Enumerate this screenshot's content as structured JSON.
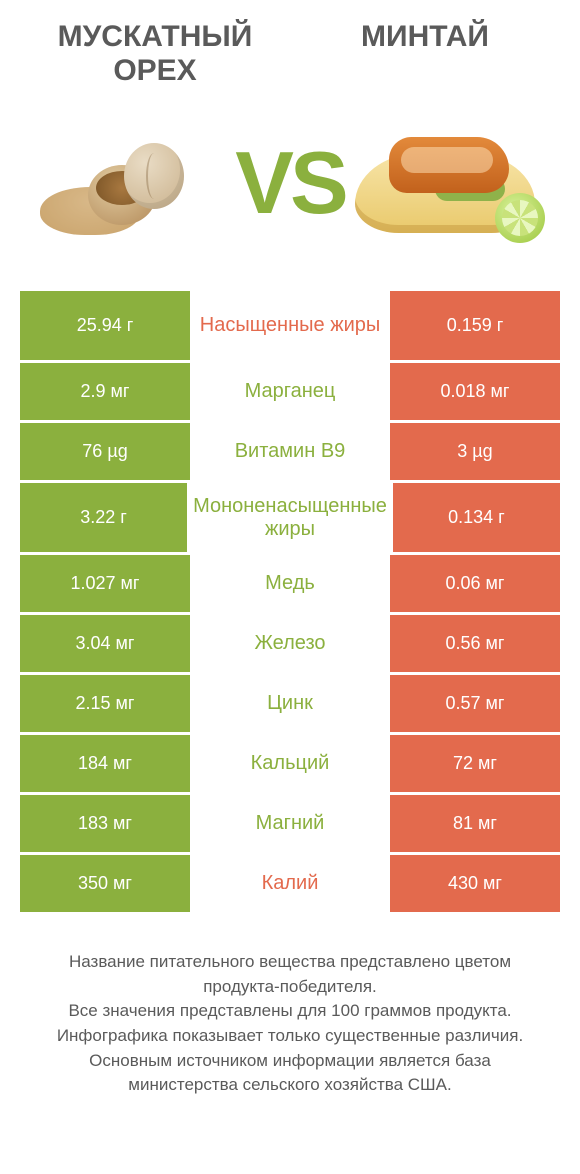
{
  "titles": {
    "left": "МУСКАТНЫЙ ОРЕХ",
    "right": "МИНТАЙ"
  },
  "vs": "VS",
  "colors": {
    "green": "#8bb03e",
    "orange": "#e36a4d",
    "text_gray": "#5a5a5a",
    "background": "#ffffff"
  },
  "rows": [
    {
      "left": "25.94 г",
      "label": "Насыщенные жиры",
      "right": "0.159 г",
      "winner": "right",
      "tall": true
    },
    {
      "left": "2.9 мг",
      "label": "Марганец",
      "right": "0.018 мг",
      "winner": "left"
    },
    {
      "left": "76 µg",
      "label": "Витамин B9",
      "right": "3 µg",
      "winner": "left"
    },
    {
      "left": "3.22 г",
      "label": "Мононенасыщенные жиры",
      "right": "0.134 г",
      "winner": "left",
      "tall": true
    },
    {
      "left": "1.027 мг",
      "label": "Медь",
      "right": "0.06 мг",
      "winner": "left"
    },
    {
      "left": "3.04 мг",
      "label": "Железо",
      "right": "0.56 мг",
      "winner": "left"
    },
    {
      "left": "2.15 мг",
      "label": "Цинк",
      "right": "0.57 мг",
      "winner": "left"
    },
    {
      "left": "184 мг",
      "label": "Кальций",
      "right": "72 мг",
      "winner": "left"
    },
    {
      "left": "183 мг",
      "label": "Магний",
      "right": "81 мг",
      "winner": "left"
    },
    {
      "left": "350 мг",
      "label": "Калий",
      "right": "430 мг",
      "winner": "right"
    }
  ],
  "footnote": "Название питательного вещества представлено цветом продукта-победителя.\nВсе значения представлены для 100 граммов продукта.\nИнфографика показывает только существенные различия.\nОсновным источником информации является база министерства сельского хозяйства США."
}
